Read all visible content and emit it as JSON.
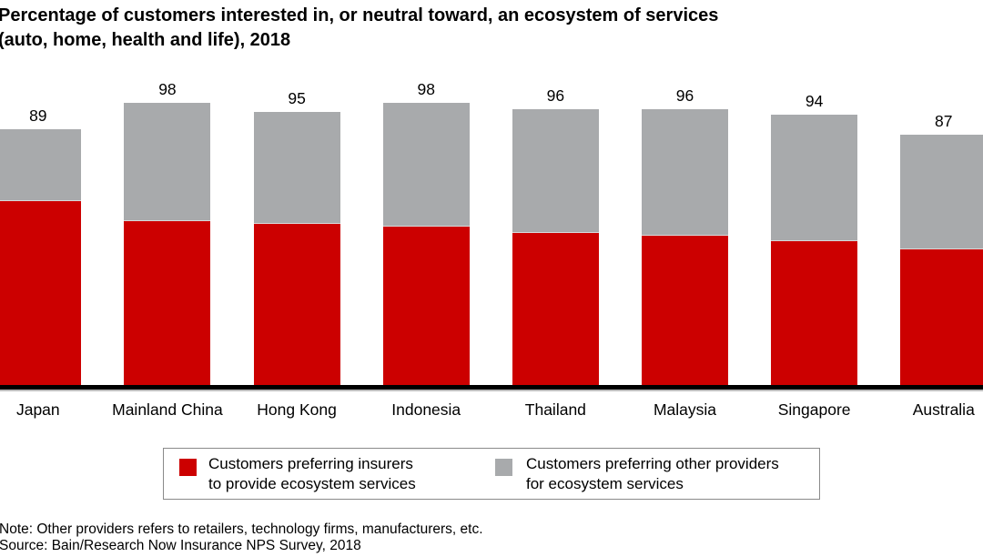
{
  "title": {
    "line1": "Percentage of customers interested in, or neutral toward, an ecosystem of services",
    "line2": "(auto, home, health and life), 2018"
  },
  "chart_data": {
    "type": "bar",
    "stacked": true,
    "title": "Percentage of customers interested in, or neutral toward, an ecosystem of services (auto, home, health and life), 2018",
    "categories": [
      "Japan",
      "Mainland China",
      "Hong Kong",
      "Indonesia",
      "Thailand",
      "Malaysia",
      "Singapore",
      "Australia"
    ],
    "series": [
      {
        "name": "Customers preferring insurers to provide ecosystem services",
        "color": "#cc0000",
        "values": [
          64,
          57,
          56,
          55,
          53,
          52,
          50,
          47
        ]
      },
      {
        "name": "Customers preferring other providers for ecosystem services",
        "color": "#a8aaac",
        "values": [
          25,
          41,
          39,
          43,
          43,
          44,
          44,
          40
        ]
      }
    ],
    "totals": [
      89,
      98,
      95,
      98,
      96,
      96,
      94,
      87
    ],
    "value_labels": "totals shown above each bar",
    "xlabel": "",
    "ylabel": "",
    "ylim": [
      0,
      100
    ],
    "grid": false,
    "axis_line_color": "#000000",
    "legend_position": "bottom"
  },
  "legend": {
    "items": [
      {
        "line1": "Customers preferring insurers",
        "line2": "to provide ecosystem services",
        "color": "#cc0000"
      },
      {
        "line1": "Customers preferring other providers",
        "line2": "for ecosystem services",
        "color": "#a8aaac"
      }
    ]
  },
  "notes": {
    "note": "Note: Other providers refers to retailers, technology firms, manufacturers, etc.",
    "source": "Source: Bain/Research Now Insurance NPS Survey, 2018"
  },
  "colors": {
    "insurers_red": "#cc0000",
    "other_providers_gray": "#a8aaac",
    "axis_black": "#000000",
    "axis_shadow_gray": "#bcbcbc",
    "legend_border": "#8a8a8a",
    "background": "#ffffff"
  }
}
